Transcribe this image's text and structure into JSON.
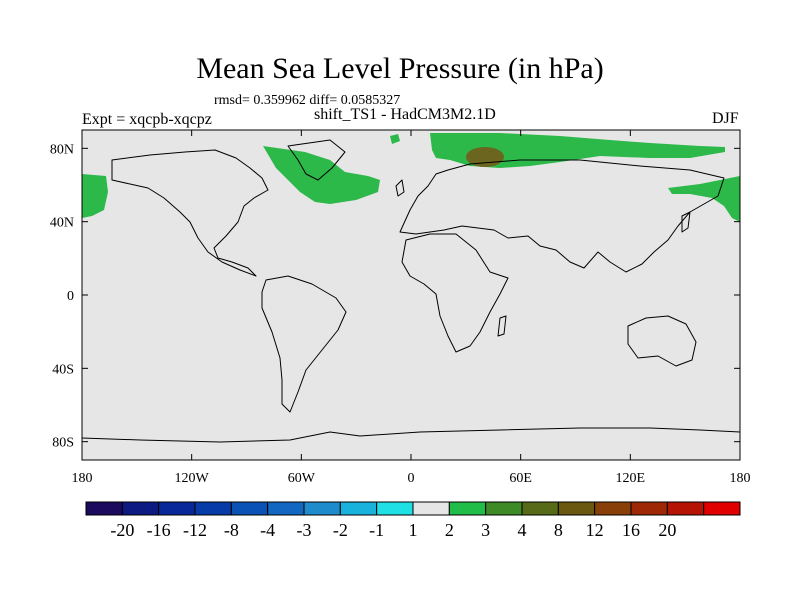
{
  "figure": {
    "title": "Mean Sea Level Pressure (in hPa)",
    "stats": "rmsd= 0.359962 diff= 0.0585327",
    "experiment": "Expt = xqcpb-xqcpz",
    "subtitle": "shift_TS1 - HadCM3M2.1D",
    "season": "DJF"
  },
  "map": {
    "projection": "cylindrical equidistant",
    "lon_range": [
      -180,
      180
    ],
    "lat_range": [
      -90,
      90
    ],
    "lat_ticks": [
      {
        "value": 80,
        "label": "80N"
      },
      {
        "value": 40,
        "label": "40N"
      },
      {
        "value": 0,
        "label": "0"
      },
      {
        "value": -40,
        "label": "40S"
      },
      {
        "value": -80,
        "label": "80S"
      }
    ],
    "lon_ticks": [
      {
        "value": -180,
        "label": "180"
      },
      {
        "value": -120,
        "label": "120W"
      },
      {
        "value": -60,
        "label": "60W"
      },
      {
        "value": 0,
        "label": "0"
      },
      {
        "value": 60,
        "label": "60E"
      },
      {
        "value": 120,
        "label": "120E"
      },
      {
        "value": 180,
        "label": "180"
      }
    ],
    "background_color": "#e6e6e6",
    "features": [
      {
        "name": "north-atlantic-positive",
        "color": "#2db84a"
      },
      {
        "name": "arctic-eurasia-positive",
        "color": "#2db84a"
      },
      {
        "name": "barents-sea-maximum",
        "color": "#6b6520"
      },
      {
        "name": "north-pacific-west-positive",
        "color": "#2db84a"
      },
      {
        "name": "north-pacific-east-positive",
        "color": "#2db84a"
      },
      {
        "name": "greenland-sea-patch",
        "color": "#2db84a"
      }
    ]
  },
  "colorbar": {
    "labels": [
      "-20",
      "-16",
      "-12",
      "-8",
      "-4",
      "-3",
      "-2",
      "-1",
      "1",
      "2",
      "3",
      "4",
      "8",
      "12",
      "16",
      "20"
    ],
    "colors": [
      "#1b0a5e",
      "#0c1a82",
      "#08289a",
      "#073ca8",
      "#0a52b6",
      "#1268c0",
      "#1e8ccc",
      "#19b2dc",
      "#1fe0e4",
      "#e6e6e6",
      "#20bd48",
      "#3e8a26",
      "#566a18",
      "#6b5810",
      "#884008",
      "#9e2806",
      "#b51404",
      "#e00000"
    ]
  }
}
